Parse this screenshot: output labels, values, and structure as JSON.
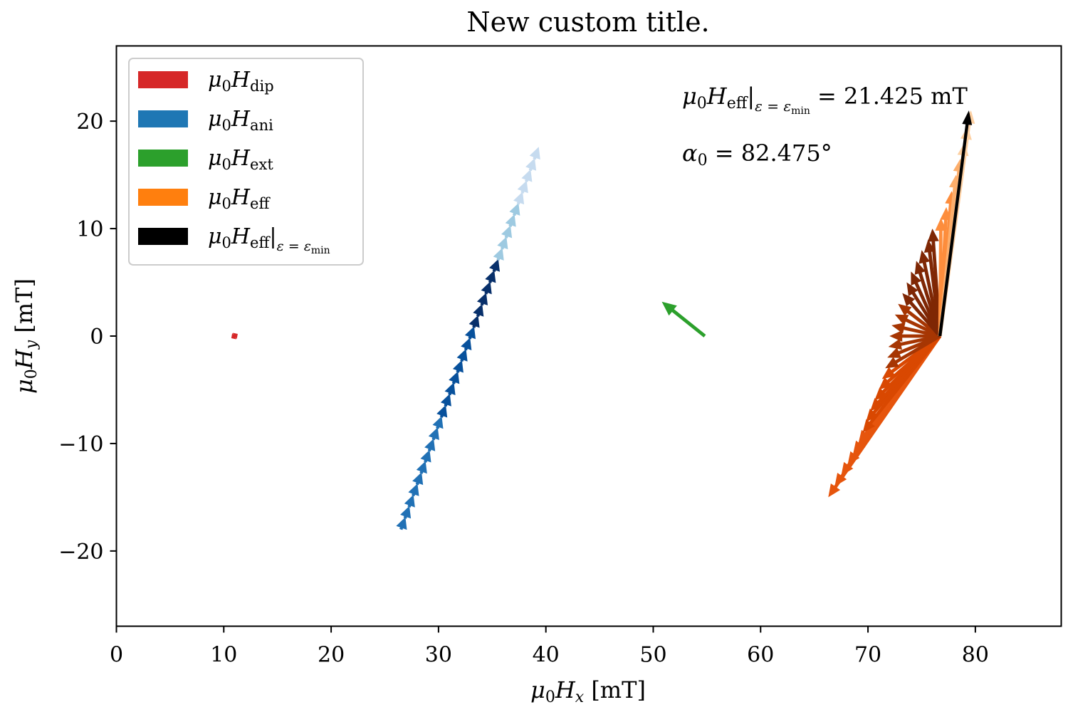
{
  "chart_data": {
    "type": "quiver",
    "title": "New custom title.",
    "xlabel": {
      "var": "μ",
      "sub0": "0",
      "var2": "H",
      "sub": "x",
      "unit": " [mT]"
    },
    "ylabel": {
      "var": "μ",
      "sub0": "0",
      "var2": "H",
      "sub": "y",
      "unit": " [mT]"
    },
    "xlim": [
      0,
      88
    ],
    "ylim": [
      -27,
      27
    ],
    "xticks": [
      0,
      10,
      20,
      30,
      40,
      50,
      60,
      70,
      80
    ],
    "yticks": [
      -20,
      -10,
      0,
      10,
      20
    ],
    "xtick_labels": [
      "0",
      "10",
      "20",
      "30",
      "40",
      "50",
      "60",
      "70",
      "80"
    ],
    "ytick_labels": [
      "−20",
      "−10",
      "0",
      "10",
      "20"
    ],
    "grid": false,
    "legend_position": "top-left",
    "legend": [
      {
        "sym": "μ",
        "sub0": "0",
        "H": "H",
        "sub": "dip",
        "color": "#d62728"
      },
      {
        "sym": "μ",
        "sub0": "0",
        "H": "H",
        "sub": "ani",
        "color": "#1f77b4"
      },
      {
        "sym": "μ",
        "sub0": "0",
        "H": "H",
        "sub": "ext",
        "color": "#2ca02c"
      },
      {
        "sym": "μ",
        "sub0": "0",
        "H": "H",
        "sub": "eff",
        "color": "#ff7f0e"
      },
      {
        "sym": "μ",
        "sub0": "0",
        "H": "H",
        "sub": "eff",
        "cond": "ε = ε",
        "cond_sub": "min",
        "color": "#000000"
      }
    ],
    "annotations": {
      "heff_min": {
        "text": "= 21.425 mT",
        "value": 21.425,
        "unit": "mT"
      },
      "alpha0": {
        "sym": "α",
        "sub": "0",
        "text": "= 82.475°",
        "value": 82.475
      }
    },
    "series": [
      {
        "name": "dip",
        "color": "#d62728",
        "origin": [
          11.0,
          0.0
        ],
        "vectors": {
          "dx_from": -0.3,
          "dx_to": 0.3,
          "dy_from": -0.2,
          "dy_to": 0.2,
          "count": 6
        }
      },
      {
        "name": "ani",
        "colormap": [
          "#c6dbef",
          "#9ecae1",
          "#6baed6",
          "#3182bd",
          "#08519c",
          "#08306b",
          "#2171b5",
          "#4292c6"
        ],
        "tail_start": [
          26.5,
          -18.0
        ],
        "tail_end": [
          39.3,
          17.5
        ],
        "head_darkest": [
          34.8,
          6.0
        ],
        "count": 34
      },
      {
        "name": "ext",
        "color": "#2ca02c",
        "tail": [
          54.8,
          0.0
        ],
        "head": [
          50.8,
          3.2
        ]
      },
      {
        "name": "eff",
        "origin": [
          76.7,
          0.0
        ],
        "tips": [
          [
            66.3,
            -15.0
          ],
          [
            66.9,
            -14.0
          ],
          [
            67.5,
            -13.0
          ],
          [
            68.1,
            -12.0
          ],
          [
            68.6,
            -11.0
          ],
          [
            69.1,
            -10.0
          ],
          [
            69.5,
            -9.0
          ],
          [
            69.8,
            -8.0
          ],
          [
            70.2,
            -7.0
          ],
          [
            70.6,
            -6.0
          ],
          [
            71.0,
            -5.0
          ],
          [
            71.3,
            -4.0
          ],
          [
            71.6,
            -3.0
          ],
          [
            71.8,
            -2.0
          ],
          [
            71.9,
            -1.0
          ],
          [
            72.0,
            0.0
          ],
          [
            72.2,
            1.0
          ],
          [
            72.5,
            2.0
          ],
          [
            72.8,
            3.0
          ],
          [
            73.2,
            4.0
          ],
          [
            73.6,
            5.0
          ],
          [
            74.0,
            6.0
          ],
          [
            74.5,
            7.0
          ],
          [
            75.0,
            8.0
          ],
          [
            75.6,
            9.0
          ],
          [
            76.0,
            10.0
          ],
          [
            76.8,
            11.0
          ],
          [
            77.3,
            12.0
          ],
          [
            77.8,
            13.5
          ],
          [
            78.2,
            15.0
          ],
          [
            78.6,
            16.5
          ],
          [
            79.0,
            18.0
          ],
          [
            79.3,
            19.5
          ],
          [
            79.6,
            21.0
          ]
        ],
        "colormap": [
          "#e6550d",
          "#d94801",
          "#a63603",
          "#7f2704",
          "#fd8d3c",
          "#fdae6b",
          "#fdd0a2",
          "#fee6ce"
        ]
      },
      {
        "name": "eff_min",
        "color": "#000000",
        "tail": [
          76.7,
          0.0
        ],
        "head": [
          79.4,
          21.0
        ]
      }
    ]
  }
}
